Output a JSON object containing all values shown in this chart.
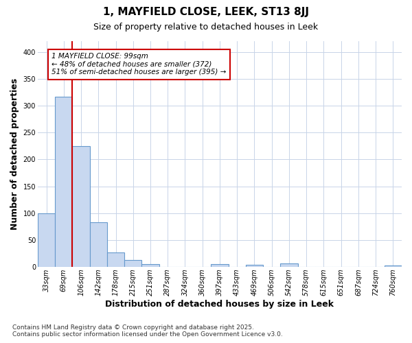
{
  "title": "1, MAYFIELD CLOSE, LEEK, ST13 8JJ",
  "subtitle": "Size of property relative to detached houses in Leek",
  "xlabel": "Distribution of detached houses by size in Leek",
  "ylabel": "Number of detached properties",
  "footnote1": "Contains HM Land Registry data © Crown copyright and database right 2025.",
  "footnote2": "Contains public sector information licensed under the Open Government Licence v3.0.",
  "categories": [
    "33sqm",
    "69sqm",
    "106sqm",
    "142sqm",
    "178sqm",
    "215sqm",
    "251sqm",
    "287sqm",
    "324sqm",
    "360sqm",
    "397sqm",
    "433sqm",
    "469sqm",
    "506sqm",
    "542sqm",
    "578sqm",
    "615sqm",
    "651sqm",
    "687sqm",
    "724sqm",
    "760sqm"
  ],
  "values": [
    100,
    317,
    225,
    83,
    27,
    13,
    5,
    0,
    0,
    0,
    5,
    0,
    4,
    0,
    6,
    0,
    0,
    0,
    0,
    0,
    2
  ],
  "bar_color": "#c8d8f0",
  "bar_edge_color": "#6699cc",
  "grid_color": "#c8d4e8",
  "background_color": "#ffffff",
  "vline_color": "#cc0000",
  "vline_x": 1.5,
  "annotation_text": "1 MAYFIELD CLOSE: 99sqm\n← 48% of detached houses are smaller (372)\n51% of semi-detached houses are larger (395) →",
  "annotation_box_edge_color": "#cc0000",
  "ylim": [
    0,
    420
  ],
  "yticks": [
    0,
    50,
    100,
    150,
    200,
    250,
    300,
    350,
    400
  ],
  "title_fontsize": 11,
  "subtitle_fontsize": 9,
  "axis_label_fontsize": 9,
  "tick_fontsize": 7,
  "annotation_fontsize": 7.5,
  "footnote_fontsize": 6.5
}
